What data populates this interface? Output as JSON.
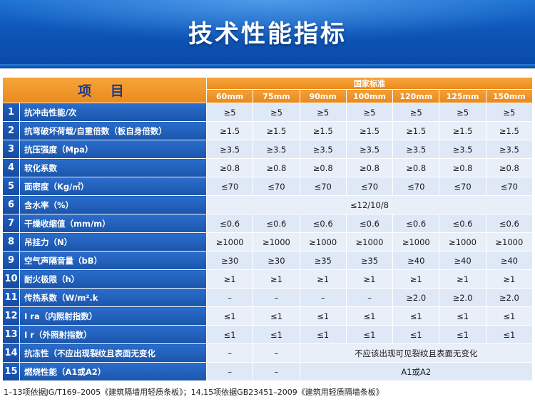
{
  "title": "技术性能指标",
  "header": {
    "item_label": "项 目",
    "standard_label": "国家标准",
    "sizes": [
      "60mm",
      "75mm",
      "90mm",
      "100mm",
      "120mm",
      "125mm",
      "150mm"
    ]
  },
  "rows": [
    {
      "num": "1",
      "item": "抗冲击性能/次",
      "values": [
        "≥5",
        "≥5",
        "≥5",
        "≥5",
        "≥5",
        "≥5",
        "≥5"
      ]
    },
    {
      "num": "2",
      "item": "抗弯破坏荷载/自重倍数（板自身倍数）",
      "values": [
        "≥1.5",
        "≥1.5",
        "≥1.5",
        "≥1.5",
        "≥1.5",
        "≥1.5",
        "≥1.5"
      ]
    },
    {
      "num": "3",
      "item": "抗压强度（Mpa）",
      "values": [
        "≥3.5",
        "≥3.5",
        "≥3.5",
        "≥3.5",
        "≥3.5",
        "≥3.5",
        "≥3.5"
      ]
    },
    {
      "num": "4",
      "item": "软化系数",
      "values": [
        "≥0.8",
        "≥0.8",
        "≥0.8",
        "≥0.8",
        "≥0.8",
        "≥0.8",
        "≥0.8"
      ]
    },
    {
      "num": "5",
      "item": "面密度（Kg/㎡）",
      "values": [
        "≤70",
        "≤70",
        "≤70",
        "≤70",
        "≤70",
        "≤70",
        "≤70"
      ]
    },
    {
      "num": "6",
      "item": "含水率（%）",
      "merged": "≤12/10/8"
    },
    {
      "num": "7",
      "item": "干燥收缩值（mm/m）",
      "values": [
        "≤0.6",
        "≤0.6",
        "≤0.6",
        "≤0.6",
        "≤0.6",
        "≤0.6",
        "≤0.6"
      ]
    },
    {
      "num": "8",
      "item": "吊挂力（N）",
      "values": [
        "≥1000",
        "≥1000",
        "≥1000",
        "≥1000",
        "≥1000",
        "≥1000",
        "≥1000"
      ]
    },
    {
      "num": "9",
      "item": "空气声隔音量（bB）",
      "values": [
        "≥30",
        "≥30",
        "≥35",
        "≥35",
        "≥40",
        "≥40",
        "≥40"
      ]
    },
    {
      "num": "10",
      "item": "耐火极限（h）",
      "values": [
        "≥1",
        "≥1",
        "≥1",
        "≥1",
        "≥1",
        "≥1",
        "≥1"
      ]
    },
    {
      "num": "11",
      "item": "传热系数（W/m².k",
      "values": [
        "–",
        "–",
        "–",
        "–",
        "≥2.0",
        "≥2.0",
        "≥2.0"
      ]
    },
    {
      "num": "12",
      "item": "I ra（内照射指数）",
      "values": [
        "≤1",
        "≤1",
        "≤1",
        "≤1",
        "≤1",
        "≤1",
        "≤1"
      ]
    },
    {
      "num": "13",
      "item": "I r（外照射指数）",
      "values": [
        "≤1",
        "≤1",
        "≤1",
        "≤1",
        "≤1",
        "≤1",
        "≤1"
      ]
    },
    {
      "num": "14",
      "item": "抗冻性（不应出现裂纹且表面无变化",
      "values": [
        "–",
        "–"
      ],
      "merged": "不应该出现可见裂纹且表面无变化"
    },
    {
      "num": "15",
      "item": "燃烧性能（A1或A2）",
      "values": [
        "–",
        "–"
      ],
      "merged": "A1或A2"
    }
  ],
  "footnote": "1–13项依据JG/T169–2005《建筑隔墙用轻质条板》；14,15项依据GB23451–2009《建筑用轻质隔墙条板》"
}
